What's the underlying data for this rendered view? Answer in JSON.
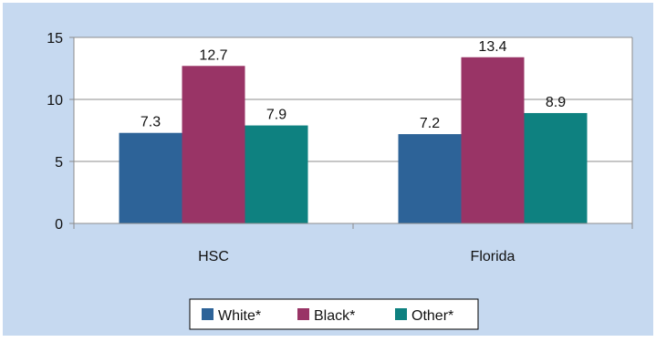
{
  "chart_data": {
    "type": "bar",
    "categories": [
      "HSC",
      "Florida"
    ],
    "series": [
      {
        "name": "White*",
        "values": [
          7.3,
          7.2
        ],
        "color": "#2d6398"
      },
      {
        "name": "Black*",
        "values": [
          12.7,
          13.4
        ],
        "color": "#993466"
      },
      {
        "name": "Other*",
        "values": [
          7.9,
          8.9
        ],
        "color": "#0e8180"
      }
    ],
    "data_labels": [
      [
        "7.3",
        "7.2"
      ],
      [
        "12.7",
        "13.4"
      ],
      [
        "7.9",
        "8.9"
      ]
    ],
    "ylim": [
      0,
      15
    ],
    "yticks": [
      0,
      5,
      10,
      15
    ],
    "grid": true,
    "legend_position": "bottom",
    "background_color": "#c6d9f0",
    "plot_background_color": "#ffffff"
  }
}
